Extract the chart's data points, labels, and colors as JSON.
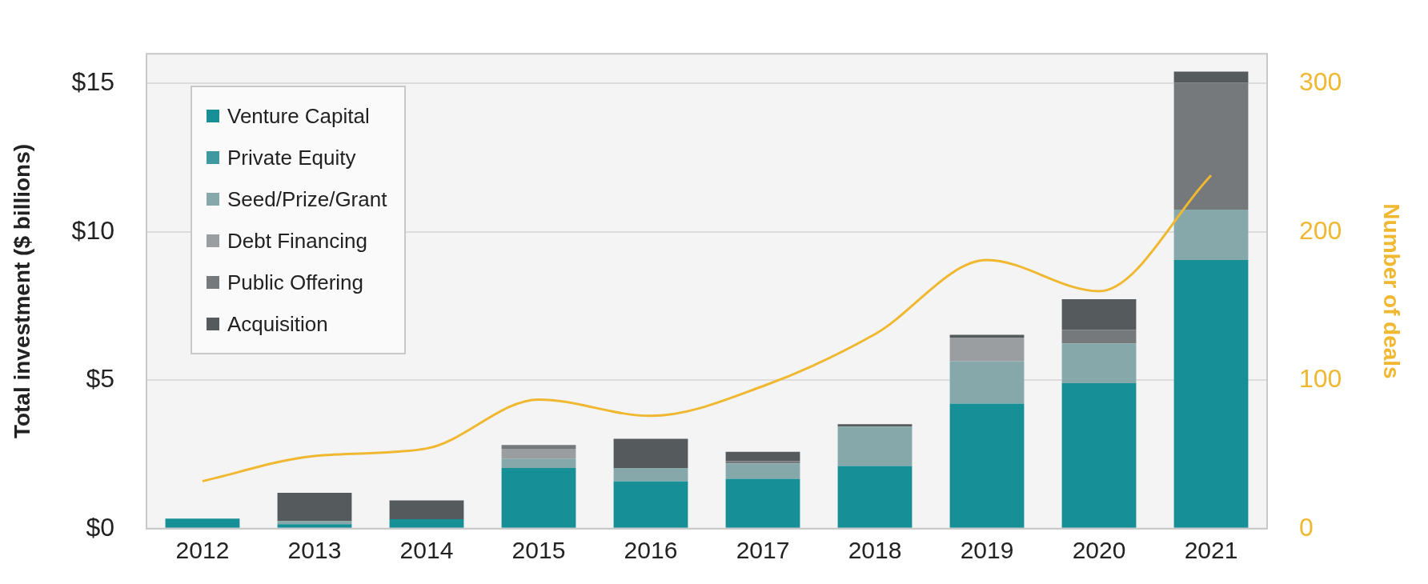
{
  "chart_data": {
    "type": "bar",
    "stacked": true,
    "ylabel": "Total investment ($ billions)",
    "y2label": "Number of deals",
    "categories": [
      "2012",
      "2013",
      "2014",
      "2015",
      "2016",
      "2017",
      "2018",
      "2019",
      "2020",
      "2021"
    ],
    "series": [
      {
        "name": "Venture Capital",
        "color": "#168f96",
        "values": [
          0.34,
          0.15,
          0.32,
          2.04,
          1.59,
          1.68,
          2.11,
          4.21,
          4.9,
          9.05
        ]
      },
      {
        "name": "Private Equity",
        "color": "#3e9aa0",
        "values": [
          0,
          0,
          0,
          0,
          0,
          0,
          0,
          0,
          0,
          0
        ]
      },
      {
        "name": "Seed/Prize/Grant",
        "color": "#86a8ab",
        "values": [
          0,
          0.1,
          0,
          0.32,
          0.45,
          0.52,
          1.33,
          1.43,
          1.34,
          1.7
        ]
      },
      {
        "name": "Debt Financing",
        "color": "#9a9ea0",
        "values": [
          0,
          0,
          0,
          0.33,
          0,
          0,
          0,
          0.8,
          0,
          0
        ]
      },
      {
        "name": "Public Offering",
        "color": "#75797c",
        "values": [
          0,
          0,
          0,
          0.13,
          0,
          0.08,
          0,
          0,
          0.46,
          4.27
        ]
      },
      {
        "name": "Acquisition",
        "color": "#555a5c",
        "values": [
          0,
          0.96,
          0.63,
          0,
          0.99,
          0.31,
          0.08,
          0.09,
          1.03,
          0.38
        ]
      },
      {
        "type": "line",
        "axis": "y2",
        "color": "#f0b830",
        "values": [
          32,
          49,
          54,
          87,
          76,
          96,
          131,
          181,
          160,
          238
        ]
      }
    ],
    "ylim": [
      0,
      16
    ],
    "yticks": [
      {
        "value": 0,
        "label": "$0"
      },
      {
        "value": 5,
        "label": "$5"
      },
      {
        "value": 10,
        "label": "$10"
      },
      {
        "value": 15,
        "label": "$15"
      }
    ],
    "y2lim": [
      0,
      320
    ],
    "y2ticks": [
      0,
      100,
      200,
      300
    ],
    "grid": "y",
    "legend": "top left"
  }
}
